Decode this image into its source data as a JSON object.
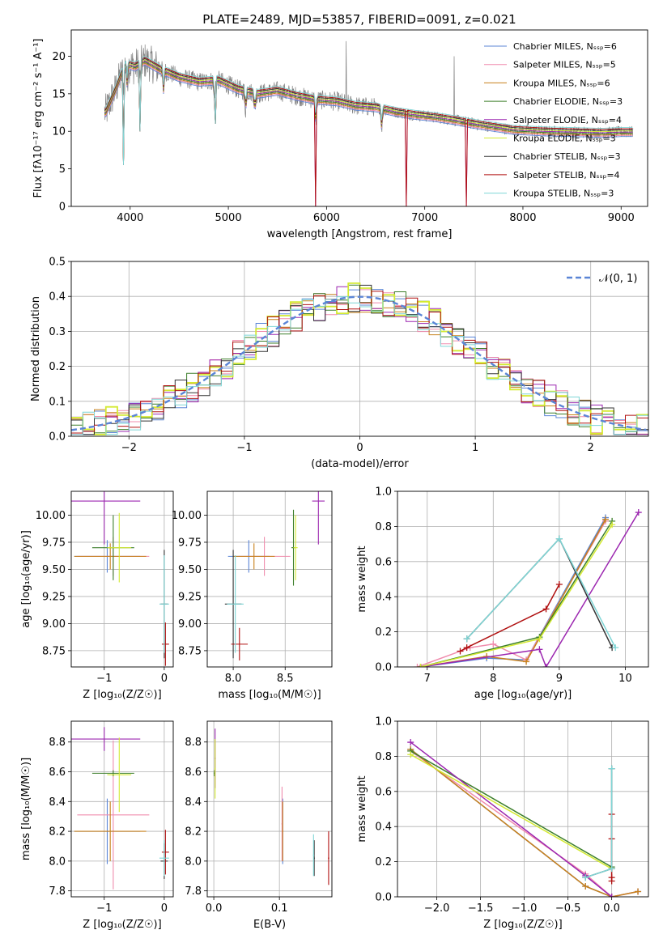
{
  "title": "PLATE=2489, MJD=53857, FIBERID=0091, z=0.021",
  "series_colors": {
    "Chabrier MILES": "#5b85d6",
    "Salpeter MILES": "#f08cad",
    "Kroupa MILES": "#c8811b",
    "Chabrier ELODIE": "#3d7f2b",
    "Salpeter ELODIE": "#9c27b0",
    "Kroupa ELODIE": "#d4ea32",
    "Chabrier STELIB": "#333333",
    "Salpeter STELIB": "#b01010",
    "Kroupa STELIB": "#7fd6d6",
    "data": "#808080"
  },
  "chart_data": [
    {
      "id": "spectrum",
      "type": "line",
      "xlabel": "wavelength [Angstrom, rest frame]",
      "ylabel": "Flux [fλ10⁻¹⁷ erg cm⁻² s⁻¹ A⁻¹]",
      "xlim": [
        3400,
        9270
      ],
      "ylim": [
        0,
        23.5
      ],
      "xticks": [
        4000,
        5000,
        6000,
        7000,
        8000,
        9000
      ],
      "yticks": [
        0,
        5,
        10,
        15,
        20
      ],
      "legend_position": "top-right",
      "legend": [
        "Chabrier MILES, Nₛₛₚ=6",
        "Salpeter MILES, Nₛₛₚ=5",
        "Kroupa MILES, Nₛₛₚ=6",
        "Chabrier ELODIE, Nₛₛₚ=3",
        "Salpeter ELODIE, Nₛₛₚ=4",
        "Kroupa ELODIE, Nₛₛₚ=3",
        "Chabrier STELIB, Nₛₛₚ=3",
        "Salpeter STELIB, Nₛₛₚ=4",
        "Kroupa STELIB, Nₛₛₚ=3"
      ],
      "continuum": {
        "x": [
          3750,
          3850,
          3950,
          4050,
          4150,
          4300,
          4500,
          4700,
          4900,
          5100,
          5300,
          5500,
          5700,
          5900,
          6100,
          6300,
          6500,
          6700,
          6900,
          7100,
          7300,
          7500,
          7700,
          7900,
          8200,
          8500,
          8800,
          9000,
          9100
        ],
        "y": [
          12.5,
          15.5,
          19.0,
          18.6,
          19.4,
          18.3,
          17.2,
          16.6,
          16.8,
          15.6,
          15.0,
          15.4,
          14.7,
          14.2,
          14.0,
          13.4,
          13.2,
          12.6,
          12.2,
          11.9,
          11.5,
          11.0,
          10.6,
          10.2,
          10.0,
          9.9,
          9.8,
          9.9,
          9.9
        ]
      },
      "dips": [
        {
          "x": 3935,
          "y": 5.5
        },
        {
          "x": 4105,
          "y": 10.0
        },
        {
          "x": 4865,
          "y": 11.0
        },
        {
          "x": 5885,
          "y": 0
        },
        {
          "x": 6810,
          "y": 0
        },
        {
          "x": 7420,
          "y": 0
        }
      ]
    },
    {
      "id": "residuals",
      "type": "histogram",
      "xlabel": "(data-model)/error",
      "ylabel": "Normed distribution",
      "xlim": [
        -2.5,
        2.5
      ],
      "ylim": [
        0,
        0.5
      ],
      "xticks": [
        -2,
        -1,
        0,
        1,
        2
      ],
      "yticks": [
        0.0,
        0.1,
        0.2,
        0.3,
        0.4,
        0.5
      ],
      "grid": true,
      "legend_position": "top-right",
      "reference_curve": {
        "name": "𝒩(0, 1)",
        "mean": 0,
        "sigma": 1
      },
      "bin_width": 0.1
    },
    {
      "id": "age-vs-Z",
      "type": "errorbar",
      "xlabel": "Z [log₁₀(Z/Z☉)]",
      "ylabel": "age  [log₁₀(age/yr)]",
      "xlim": [
        -1.55,
        0.15
      ],
      "ylim": [
        8.6,
        10.22
      ],
      "xticks": [
        -1,
        0
      ],
      "yticks": [
        8.75,
        9.0,
        9.25,
        9.5,
        9.75,
        10.0
      ],
      "grid": true
    },
    {
      "id": "age-vs-mass",
      "type": "errorbar",
      "xlabel": "mass [log₁₀(M/M☉)]",
      "ylabel": "",
      "xlim": [
        7.75,
        8.95
      ],
      "ylim": [
        8.6,
        10.22
      ],
      "xticks": [
        8.0,
        8.5
      ],
      "yticks": [
        8.75,
        9.0,
        9.25,
        9.5,
        9.75,
        10.0
      ],
      "grid": true
    },
    {
      "id": "massweight-vs-age",
      "type": "line",
      "xlabel": "age  [log₁₀(age/yr)]",
      "ylabel": "mass weight",
      "xlim": [
        6.55,
        10.35
      ],
      "ylim": [
        0,
        1.0
      ],
      "xticks": [
        7,
        8,
        9,
        10
      ],
      "yticks": [
        0.0,
        0.2,
        0.4,
        0.6,
        0.8,
        1.0
      ],
      "grid": true,
      "series": [
        {
          "name": "Chabrier MILES",
          "x": [
            6.9,
            7.9,
            8.5,
            9.7
          ],
          "y": [
            0.0,
            0.05,
            0.04,
            0.85
          ]
        },
        {
          "name": "Salpeter MILES",
          "x": [
            6.85,
            7.65,
            8.0,
            8.5,
            9.7
          ],
          "y": [
            0.0,
            0.11,
            0.13,
            0.04,
            0.83
          ]
        },
        {
          "name": "Kroupa MILES",
          "x": [
            6.9,
            7.9,
            8.5,
            9.7
          ],
          "y": [
            0.0,
            0.06,
            0.03,
            0.84
          ]
        },
        {
          "name": "Chabrier ELODIE",
          "x": [
            6.9,
            8.7,
            9.8
          ],
          "y": [
            0.0,
            0.17,
            0.83
          ]
        },
        {
          "name": "Salpeter ELODIE",
          "x": [
            6.9,
            8.7,
            8.8,
            10.2
          ],
          "y": [
            0.0,
            0.1,
            0.0,
            0.88
          ]
        },
        {
          "name": "Kroupa ELODIE",
          "x": [
            6.9,
            8.7,
            9.8
          ],
          "y": [
            0.0,
            0.16,
            0.81
          ]
        },
        {
          "name": "Chabrier STELIB",
          "x": [
            7.6,
            9.0,
            9.8
          ],
          "y": [
            0.16,
            0.73,
            0.11
          ]
        },
        {
          "name": "Salpeter STELIB",
          "x": [
            7.5,
            7.6,
            8.8,
            9.0
          ],
          "y": [
            0.09,
            0.11,
            0.33,
            0.47
          ]
        },
        {
          "name": "Kroupa STELIB",
          "x": [
            7.6,
            9.0,
            9.85
          ],
          "y": [
            0.16,
            0.73,
            0.11
          ]
        }
      ]
    },
    {
      "id": "mass-vs-Z",
      "type": "errorbar",
      "xlabel": "Z [log₁₀(Z/Z☉)]",
      "ylabel": "mass [log₁₀(M/M☉)]",
      "xlim": [
        -1.55,
        0.15
      ],
      "ylim": [
        7.76,
        8.94
      ],
      "xticks": [
        -1,
        0
      ],
      "yticks": [
        7.8,
        8.0,
        8.2,
        8.4,
        8.6,
        8.8
      ],
      "grid": true
    },
    {
      "id": "mass-vs-ebv",
      "type": "errorbar",
      "xlabel": "E(B-V)",
      "ylabel": "",
      "xlim": [
        -0.01,
        0.18
      ],
      "ylim": [
        7.76,
        8.94
      ],
      "xticks": [
        0.0,
        0.1
      ],
      "yticks": [
        7.8,
        8.0,
        8.2,
        8.4,
        8.6,
        8.8
      ],
      "grid": true
    },
    {
      "id": "massweight-vs-Z",
      "type": "line",
      "xlabel": "Z [log₁₀(Z/Z☉)]",
      "ylabel": "mass weight",
      "xlim": [
        -2.45,
        0.42
      ],
      "ylim": [
        0,
        1.0
      ],
      "xticks": [
        -2.0,
        -1.5,
        -1.0,
        -0.5,
        0.0
      ],
      "yticks": [
        0.0,
        0.2,
        0.4,
        0.6,
        0.8,
        1.0
      ],
      "grid": true,
      "series": [
        {
          "name": "Chabrier MILES",
          "x": [
            -2.3,
            -0.3,
            0.0,
            0.3
          ],
          "y": [
            0.84,
            0.06,
            0.0,
            0.03
          ]
        },
        {
          "name": "Salpeter MILES",
          "x": [
            -2.3,
            -0.3,
            0.0,
            0.3
          ],
          "y": [
            0.83,
            0.13,
            0.0,
            0.03
          ]
        },
        {
          "name": "Kroupa MILES",
          "x": [
            -2.3,
            -0.3,
            0.0,
            0.3
          ],
          "y": [
            0.84,
            0.06,
            0.0,
            0.03
          ]
        },
        {
          "name": "Chabrier ELODIE",
          "x": [
            -2.3,
            0.0
          ],
          "y": [
            0.83,
            0.17
          ]
        },
        {
          "name": "Salpeter ELODIE",
          "x": [
            -2.3,
            -0.3,
            0.0
          ],
          "y": [
            0.88,
            0.12,
            0.0
          ]
        },
        {
          "name": "Kroupa ELODIE",
          "x": [
            -2.3,
            0.0
          ],
          "y": [
            0.81,
            0.16
          ]
        },
        {
          "name": "Chabrier STELIB",
          "x": [
            -0.3,
            0.0,
            0.0
          ],
          "y": [
            0.11,
            0.16,
            0.73
          ]
        },
        {
          "name": "Salpeter STELIB",
          "x": [
            0.0,
            0.0,
            0.0,
            0.0
          ],
          "y": [
            0.09,
            0.11,
            0.33,
            0.47
          ]
        },
        {
          "name": "Kroupa STELIB",
          "x": [
            -0.3,
            0.0,
            0.0
          ],
          "y": [
            0.11,
            0.16,
            0.73
          ]
        }
      ]
    }
  ]
}
